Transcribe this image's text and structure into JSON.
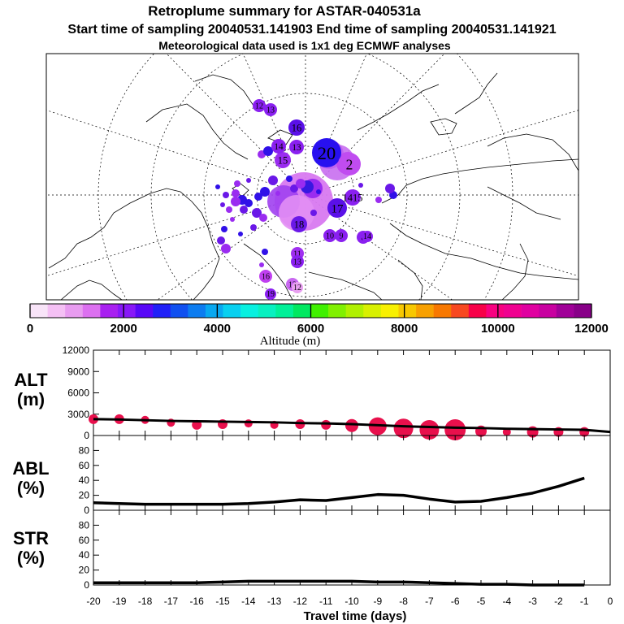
{
  "header": {
    "line1": "Retroplume summary for ASTAR-040531a",
    "line2": "Start time of sampling 20040531.141903     End time of sampling 20040531.141921",
    "line3": "Meteorological data used is 1x1 deg ECMWF analyses"
  },
  "colorbar": {
    "title": "Altitude (m)",
    "tick_labels": [
      "0",
      "2000",
      "4000",
      "6000",
      "8000",
      "10000",
      "12000"
    ],
    "colors": [
      "#f8e4f8",
      "#f4c0f4",
      "#e89cf0",
      "#dc70f0",
      "#a820f0",
      "#8818f8",
      "#5808f8",
      "#2020f8",
      "#1050f0",
      "#0c7cf0",
      "#08a8f0",
      "#08d0f0",
      "#08f0e0",
      "#08f0c0",
      "#00f098",
      "#00e860",
      "#40f000",
      "#80f000",
      "#b0f000",
      "#d8f000",
      "#f8f000",
      "#f8c800",
      "#f8a000",
      "#f87800",
      "#f84820",
      "#f80048",
      "#f80080",
      "#f00090",
      "#e000a0",
      "#c800a0",
      "#a00098",
      "#880088"
    ]
  },
  "map": {
    "labels": [
      {
        "text": "20",
        "color": "#2810f0",
        "r": 18
      },
      {
        "text": "2",
        "color": "#c04cf0",
        "r": 14
      },
      {
        "text": "15",
        "color": "#9a2cf0",
        "r": 10
      },
      {
        "text": "14",
        "color": "#8a20f0",
        "r": 9
      },
      {
        "text": "13",
        "color": "#8a20f0",
        "r": 9
      },
      {
        "text": "16",
        "color": "#5a10e8",
        "r": 10
      },
      {
        "text": "17",
        "color": "#5a10e8",
        "r": 12
      },
      {
        "text": "18",
        "color": "#6a18e8",
        "r": 10
      },
      {
        "text": "1415",
        "color": "#8a20f0",
        "r": 10
      },
      {
        "text": "10",
        "color": "#8a20f0",
        "r": 8
      },
      {
        "text": "9",
        "color": "#8a20f0",
        "r": 8
      },
      {
        "text": "8",
        "color": "#8a20f0",
        "r": 8
      },
      {
        "text": "11",
        "color": "#a030f0",
        "r": 8
      },
      {
        "text": "12",
        "color": "#c868f0",
        "r": 8
      },
      {
        "text": "13",
        "color": "#8a20f0",
        "r": 8
      },
      {
        "text": "16",
        "color": "#c040f0",
        "r": 8
      },
      {
        "text": "19",
        "color": "#8a20f0",
        "r": 7
      },
      {
        "text": "12",
        "color": "#e8a0f0",
        "r": 7
      },
      {
        "text": "14",
        "color": "#8a20f0",
        "r": 7
      },
      {
        "text": "13",
        "color": "#8a20f0",
        "r": 8
      },
      {
        "text": "12",
        "color": "#8a20f0",
        "r": 8
      }
    ]
  },
  "chart_data": [
    {
      "type": "scatter",
      "panel_label_1": "ALT",
      "panel_label_2": "(m)",
      "ylabel": "ALT (m)",
      "ylim": [
        0,
        12000
      ],
      "yticks": [
        "0",
        "3000",
        "6000",
        "9000",
        "12000"
      ],
      "xlim": [
        -20,
        0
      ],
      "series": [
        {
          "name": "plume altitude (line)",
          "x": [
            -20,
            -19,
            -18,
            -17,
            -16,
            -15,
            -14,
            -13,
            -12,
            -11,
            -10,
            -9,
            -8,
            -7,
            -6,
            -5,
            -4,
            -3,
            -2,
            -1,
            0
          ],
          "values": [
            2300,
            2250,
            2150,
            2050,
            2000,
            1950,
            1900,
            1850,
            1750,
            1700,
            1600,
            1450,
            1300,
            1200,
            1100,
            1050,
            950,
            900,
            850,
            800,
            500
          ]
        },
        {
          "name": "plume altitude (circles)",
          "x": [
            -20,
            -19,
            -18,
            -17,
            -16,
            -15,
            -14,
            -13,
            -12,
            -11,
            -10,
            -9,
            -8,
            -7,
            -6,
            -5,
            -4,
            -3,
            -2,
            -1
          ],
          "values": [
            2300,
            2300,
            2200,
            1800,
            1500,
            1600,
            1700,
            1500,
            1600,
            1500,
            1400,
            1300,
            1000,
            800,
            800,
            600,
            500,
            500,
            500,
            500
          ]
        }
      ]
    },
    {
      "type": "line",
      "panel_label_1": "ABL",
      "panel_label_2": "(%)",
      "ylabel": "ABL (%)",
      "ylim": [
        0,
        100
      ],
      "yticks": [
        "0",
        "20",
        "40",
        "60",
        "80"
      ],
      "xlim": [
        -20,
        0
      ],
      "series": [
        {
          "name": "ABL fraction",
          "x": [
            -20,
            -19,
            -18,
            -17,
            -16,
            -15,
            -14,
            -13,
            -12,
            -11,
            -10,
            -9,
            -8,
            -7,
            -6,
            -5,
            -4,
            -3,
            -2,
            -1
          ],
          "values": [
            10,
            9,
            8,
            8,
            8,
            8,
            9,
            11,
            14,
            13,
            17,
            21,
            20,
            15,
            11,
            12,
            17,
            23,
            32,
            43
          ]
        }
      ]
    },
    {
      "type": "line",
      "panel_label_1": "STR",
      "panel_label_2": "(%)",
      "ylabel": "STR (%)",
      "ylim": [
        0,
        100
      ],
      "yticks": [
        "0",
        "20",
        "40",
        "60",
        "80"
      ],
      "xlim": [
        -20,
        0
      ],
      "xlabel": "Travel time (days)",
      "xtick_labels": [
        "-20",
        "-19",
        "-18",
        "-17",
        "-16",
        "-15",
        "-14",
        "-13",
        "-12",
        "-11",
        "-10",
        "-9",
        "-8",
        "-7",
        "-6",
        "-5",
        "-4",
        "-3",
        "-2",
        "-1",
        "0"
      ],
      "series": [
        {
          "name": "stratospheric fraction",
          "x": [
            -20,
            -19,
            -18,
            -17,
            -16,
            -15,
            -14,
            -13,
            -12,
            -11,
            -10,
            -9,
            -8,
            -7,
            -6,
            -5,
            -4,
            -3,
            -2,
            -1
          ],
          "values": [
            3,
            3,
            3,
            3,
            3,
            4,
            5,
            5,
            5,
            5,
            5,
            4,
            4,
            3,
            2,
            1,
            1,
            0,
            0,
            0
          ]
        }
      ]
    }
  ],
  "accent": {
    "line": "#000000",
    "circle": "#e8104c"
  }
}
